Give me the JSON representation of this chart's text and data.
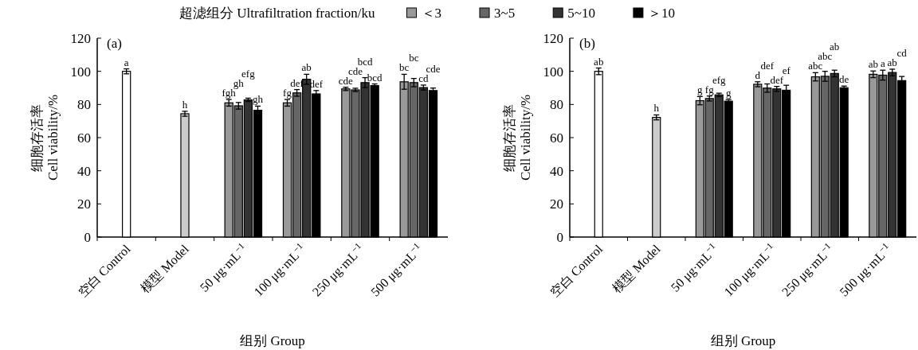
{
  "chart_data": [
    {
      "type": "bar",
      "ylabel": "细胞存活率\nCell viability/%",
      "xlabel": "组别 Group",
      "legend_title": "超滤组分 Ultrafiltration fraction/ku",
      "legend": "top",
      "annotations": [
        "(a)"
      ],
      "ylim": [
        0,
        120
      ],
      "yticks": [
        0,
        20,
        40,
        60,
        80,
        100,
        120
      ],
      "categories": [
        "空白 Control",
        "模型 Model",
        "50 μg·mL$^{−1}$",
        "100 μg·mL$^{−1}$",
        "250 μg·mL$^{−1}$",
        "500 μg·mL$^{−1}$"
      ],
      "series": [
        {
          "color": "#ffffff",
          "values": [
            100,
            null,
            null,
            null,
            null,
            null
          ],
          "errors": [
            1.5,
            null,
            null,
            null,
            null,
            null
          ],
          "value_labels": [
            "a",
            null,
            null,
            null,
            null,
            null
          ]
        },
        {
          "color": "#cccccc",
          "values": [
            null,
            74.4,
            null,
            null,
            null,
            null
          ],
          "errors": [
            null,
            1.5,
            null,
            null,
            null,
            null
          ],
          "value_labels": [
            null,
            "h",
            null,
            null,
            null,
            null
          ]
        },
        {
          "name": "＜3",
          "color": "#999999",
          "values": [
            null,
            null,
            81,
            81,
            89.4,
            93.7
          ],
          "errors": [
            null,
            null,
            2,
            2,
            1,
            4.5
          ],
          "value_labels": [
            null,
            null,
            "fgh",
            "fg",
            "cde",
            "bc"
          ]
        },
        {
          "name": "3~5",
          "color": "#666666",
          "values": [
            null,
            null,
            79.2,
            87,
            88.8,
            93.2
          ],
          "errors": [
            null,
            null,
            2,
            2,
            1,
            2.5
          ],
          "value_labels": [
            null,
            null,
            "gh",
            "def",
            "cde",
            "bc"
          ]
        },
        {
          "name": "5~10",
          "color": "#333333",
          "values": [
            null,
            null,
            82.8,
            95.2,
            93.2,
            90.2
          ],
          "errors": [
            null,
            null,
            1,
            3,
            3,
            1.5
          ],
          "value_labels": [
            null,
            null,
            "efg",
            "ab",
            "bcd",
            "cd"
          ]
        },
        {
          "name": "＞10",
          "color": "#000000",
          "values": [
            null,
            null,
            76.5,
            86.4,
            91.4,
            88.4
          ],
          "errors": [
            null,
            null,
            2.5,
            2,
            1,
            1.5
          ],
          "value_labels": [
            null,
            null,
            "gh",
            "def",
            "bcd",
            "cde"
          ]
        }
      ]
    },
    {
      "type": "bar",
      "ylabel": "细胞存活率\nCell viability/%",
      "xlabel": "组别 Group",
      "annotations": [
        "(b)"
      ],
      "ylim": [
        0,
        120
      ],
      "yticks": [
        0,
        20,
        40,
        60,
        80,
        100,
        120
      ],
      "categories": [
        "空白 Control",
        "模型 Model",
        "50 μg·mL$^{−1}$",
        "100 μg·mL$^{−1}$",
        "250 μg·mL$^{−1}$",
        "500 μg·mL$^{−1}$"
      ],
      "series": [
        {
          "color": "#ffffff",
          "values": [
            100,
            null,
            null,
            null,
            null,
            null
          ],
          "errors": [
            2,
            null,
            null,
            null,
            null,
            null
          ],
          "value_labels": [
            "ab",
            null,
            null,
            null,
            null,
            null
          ]
        },
        {
          "color": "#cccccc",
          "values": [
            null,
            72.2,
            null,
            null,
            null,
            null
          ],
          "errors": [
            null,
            1.5,
            null,
            null,
            null,
            null
          ],
          "value_labels": [
            null,
            "h",
            null,
            null,
            null,
            null
          ]
        },
        {
          "color": "#999999",
          "values": [
            null,
            null,
            82.3,
            92.2,
            96.7,
            98.2
          ],
          "errors": [
            null,
            null,
            2.5,
            1.5,
            2.5,
            2
          ],
          "value_labels": [
            null,
            null,
            "g",
            "d",
            "abc",
            "ab"
          ]
        },
        {
          "color": "#666666",
          "values": [
            null,
            null,
            83.6,
            89.9,
            97,
            97.7
          ],
          "errors": [
            null,
            null,
            1.5,
            2.5,
            3,
            3
          ],
          "value_labels": [
            null,
            null,
            "fg",
            "def",
            "abc",
            "a"
          ]
        },
        {
          "color": "#333333",
          "values": [
            null,
            null,
            85.8,
            89.4,
            98.7,
            99.3
          ],
          "errors": [
            null,
            null,
            1,
            1.5,
            2,
            2
          ],
          "value_labels": [
            null,
            null,
            "efg",
            "def",
            "ab",
            "ab"
          ]
        },
        {
          "color": "#000000",
          "values": [
            null,
            null,
            82,
            88.6,
            90.1,
            94.4
          ],
          "errors": [
            null,
            null,
            1,
            3,
            1,
            2.5
          ],
          "value_labels": [
            null,
            null,
            "g",
            "ef",
            "de",
            "cd"
          ]
        }
      ]
    }
  ]
}
